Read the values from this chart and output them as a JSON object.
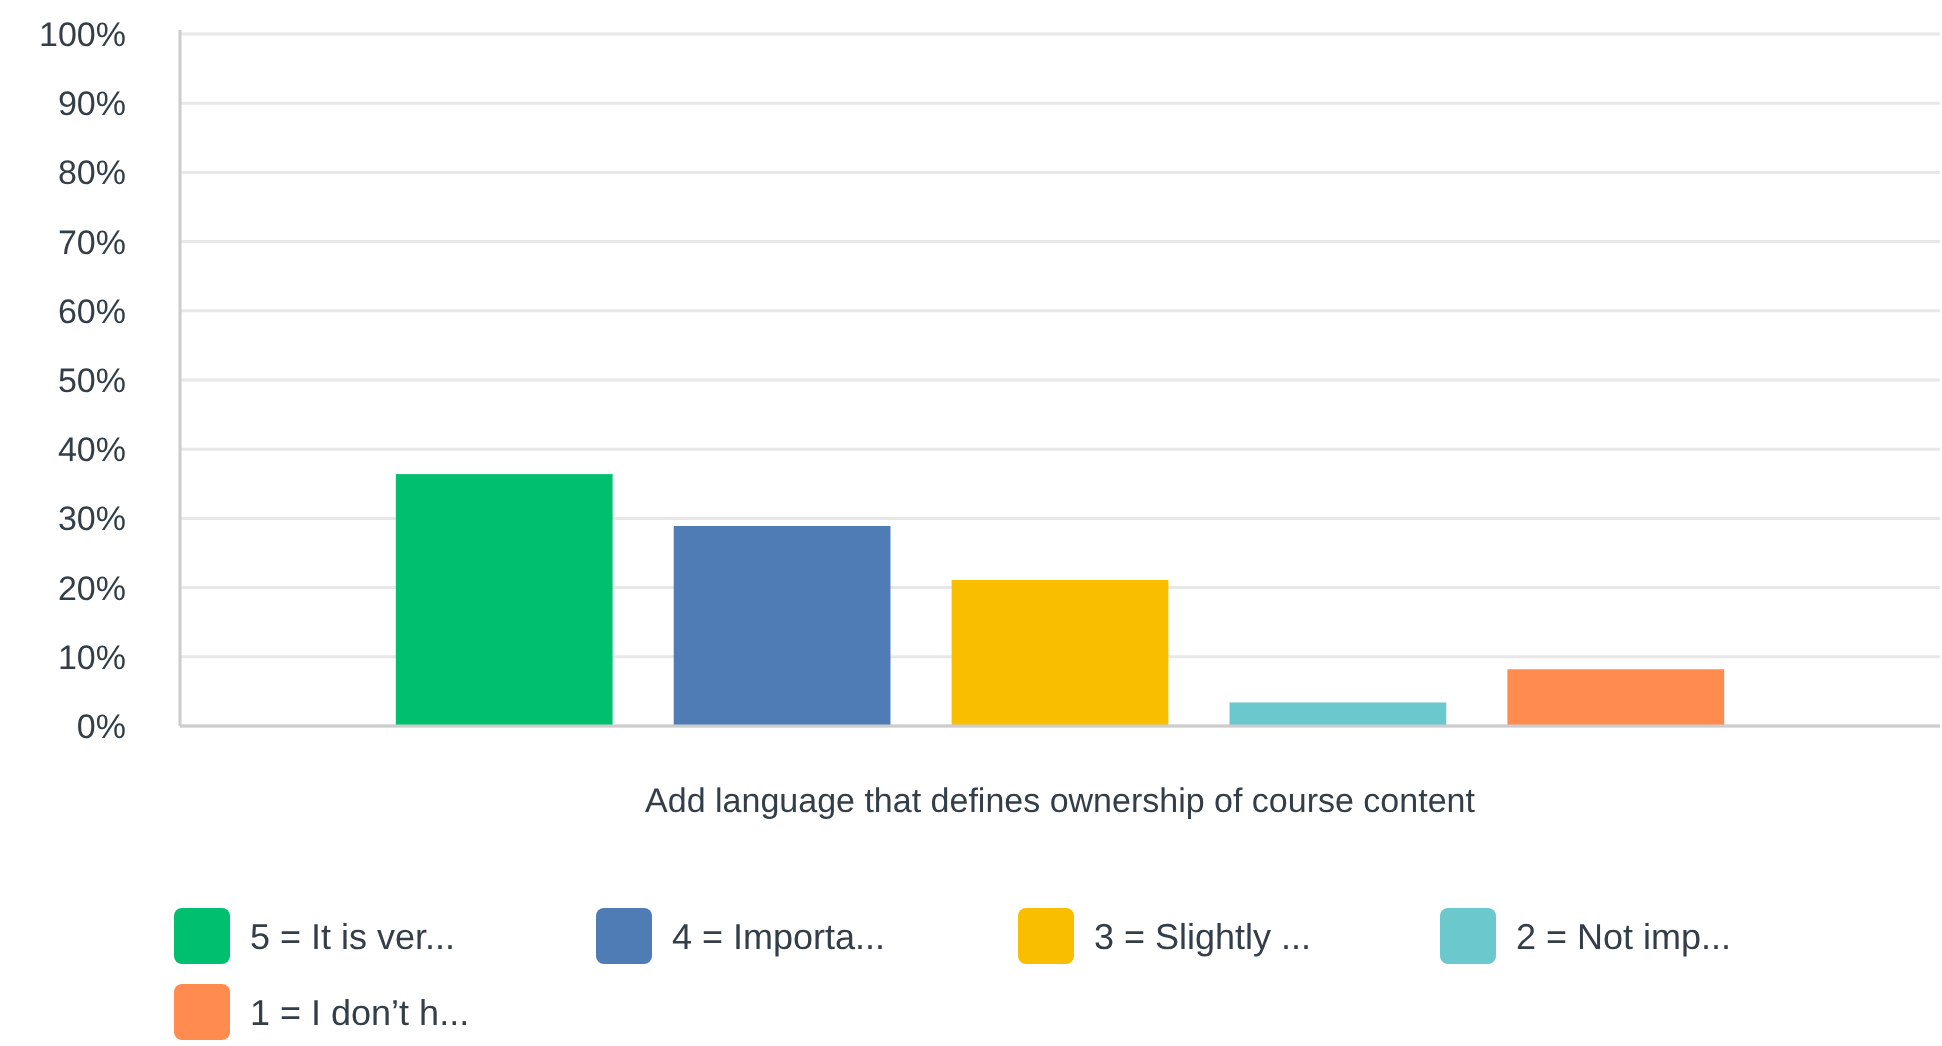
{
  "chart_data": {
    "type": "bar",
    "categories": [
      "Add language that defines ownership of course content"
    ],
    "series": [
      {
        "name": "5 = It is ver...",
        "color": "#00bf6f",
        "values": [
          36.4
        ]
      },
      {
        "name": "4 = Importa...",
        "color": "#507cb6",
        "values": [
          28.9
        ]
      },
      {
        "name": "3 = Slightly ...",
        "color": "#f9be00",
        "values": [
          21.1
        ]
      },
      {
        "name": "2 = Not imp...",
        "color": "#6bc8cd",
        "values": [
          3.4
        ]
      },
      {
        "name": "1 = I don’t h...",
        "color": "#ff8b4f",
        "values": [
          8.2
        ]
      }
    ],
    "ylim": [
      0,
      100
    ],
    "yticks": [
      {
        "value": 0,
        "label": "0%"
      },
      {
        "value": 10,
        "label": "10%"
      },
      {
        "value": 20,
        "label": "20%"
      },
      {
        "value": 30,
        "label": "30%"
      },
      {
        "value": 40,
        "label": "40%"
      },
      {
        "value": 50,
        "label": "50%"
      },
      {
        "value": 60,
        "label": "60%"
      },
      {
        "value": 70,
        "label": "70%"
      },
      {
        "value": 80,
        "label": "80%"
      },
      {
        "value": 90,
        "label": "90%"
      },
      {
        "value": 100,
        "label": "100%"
      }
    ],
    "grid": "y",
    "legend": "bottom"
  }
}
